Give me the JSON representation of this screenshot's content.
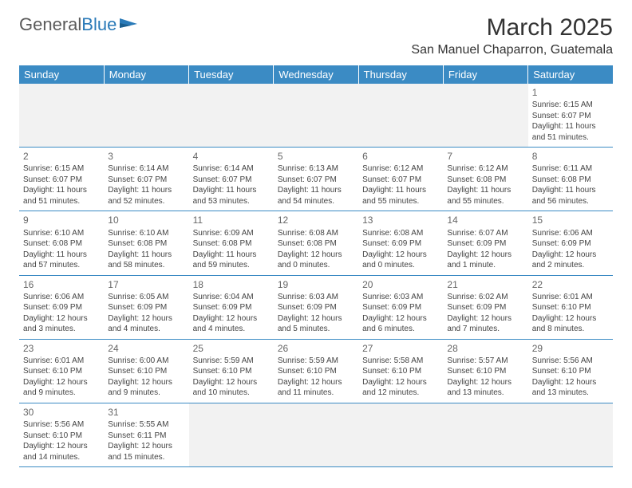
{
  "logo": {
    "word1": "General",
    "word2": "Blue"
  },
  "title": "March 2025",
  "location": "San Manuel Chaparron, Guatemala",
  "colors": {
    "header_bg": "#3b8bc4",
    "header_text": "#ffffff",
    "rule": "#3b8bc4",
    "empty_bg": "#f2f2f2",
    "logo_gray": "#5a5a5a",
    "logo_blue": "#2a7ab8"
  },
  "weekdays": [
    "Sunday",
    "Monday",
    "Tuesday",
    "Wednesday",
    "Thursday",
    "Friday",
    "Saturday"
  ],
  "weeks": [
    [
      null,
      null,
      null,
      null,
      null,
      null,
      {
        "n": "1",
        "sr": "Sunrise: 6:15 AM",
        "ss": "Sunset: 6:07 PM",
        "dl": "Daylight: 11 hours and 51 minutes."
      }
    ],
    [
      {
        "n": "2",
        "sr": "Sunrise: 6:15 AM",
        "ss": "Sunset: 6:07 PM",
        "dl": "Daylight: 11 hours and 51 minutes."
      },
      {
        "n": "3",
        "sr": "Sunrise: 6:14 AM",
        "ss": "Sunset: 6:07 PM",
        "dl": "Daylight: 11 hours and 52 minutes."
      },
      {
        "n": "4",
        "sr": "Sunrise: 6:14 AM",
        "ss": "Sunset: 6:07 PM",
        "dl": "Daylight: 11 hours and 53 minutes."
      },
      {
        "n": "5",
        "sr": "Sunrise: 6:13 AM",
        "ss": "Sunset: 6:07 PM",
        "dl": "Daylight: 11 hours and 54 minutes."
      },
      {
        "n": "6",
        "sr": "Sunrise: 6:12 AM",
        "ss": "Sunset: 6:07 PM",
        "dl": "Daylight: 11 hours and 55 minutes."
      },
      {
        "n": "7",
        "sr": "Sunrise: 6:12 AM",
        "ss": "Sunset: 6:08 PM",
        "dl": "Daylight: 11 hours and 55 minutes."
      },
      {
        "n": "8",
        "sr": "Sunrise: 6:11 AM",
        "ss": "Sunset: 6:08 PM",
        "dl": "Daylight: 11 hours and 56 minutes."
      }
    ],
    [
      {
        "n": "9",
        "sr": "Sunrise: 6:10 AM",
        "ss": "Sunset: 6:08 PM",
        "dl": "Daylight: 11 hours and 57 minutes."
      },
      {
        "n": "10",
        "sr": "Sunrise: 6:10 AM",
        "ss": "Sunset: 6:08 PM",
        "dl": "Daylight: 11 hours and 58 minutes."
      },
      {
        "n": "11",
        "sr": "Sunrise: 6:09 AM",
        "ss": "Sunset: 6:08 PM",
        "dl": "Daylight: 11 hours and 59 minutes."
      },
      {
        "n": "12",
        "sr": "Sunrise: 6:08 AM",
        "ss": "Sunset: 6:08 PM",
        "dl": "Daylight: 12 hours and 0 minutes."
      },
      {
        "n": "13",
        "sr": "Sunrise: 6:08 AM",
        "ss": "Sunset: 6:09 PM",
        "dl": "Daylight: 12 hours and 0 minutes."
      },
      {
        "n": "14",
        "sr": "Sunrise: 6:07 AM",
        "ss": "Sunset: 6:09 PM",
        "dl": "Daylight: 12 hours and 1 minute."
      },
      {
        "n": "15",
        "sr": "Sunrise: 6:06 AM",
        "ss": "Sunset: 6:09 PM",
        "dl": "Daylight: 12 hours and 2 minutes."
      }
    ],
    [
      {
        "n": "16",
        "sr": "Sunrise: 6:06 AM",
        "ss": "Sunset: 6:09 PM",
        "dl": "Daylight: 12 hours and 3 minutes."
      },
      {
        "n": "17",
        "sr": "Sunrise: 6:05 AM",
        "ss": "Sunset: 6:09 PM",
        "dl": "Daylight: 12 hours and 4 minutes."
      },
      {
        "n": "18",
        "sr": "Sunrise: 6:04 AM",
        "ss": "Sunset: 6:09 PM",
        "dl": "Daylight: 12 hours and 4 minutes."
      },
      {
        "n": "19",
        "sr": "Sunrise: 6:03 AM",
        "ss": "Sunset: 6:09 PM",
        "dl": "Daylight: 12 hours and 5 minutes."
      },
      {
        "n": "20",
        "sr": "Sunrise: 6:03 AM",
        "ss": "Sunset: 6:09 PM",
        "dl": "Daylight: 12 hours and 6 minutes."
      },
      {
        "n": "21",
        "sr": "Sunrise: 6:02 AM",
        "ss": "Sunset: 6:09 PM",
        "dl": "Daylight: 12 hours and 7 minutes."
      },
      {
        "n": "22",
        "sr": "Sunrise: 6:01 AM",
        "ss": "Sunset: 6:10 PM",
        "dl": "Daylight: 12 hours and 8 minutes."
      }
    ],
    [
      {
        "n": "23",
        "sr": "Sunrise: 6:01 AM",
        "ss": "Sunset: 6:10 PM",
        "dl": "Daylight: 12 hours and 9 minutes."
      },
      {
        "n": "24",
        "sr": "Sunrise: 6:00 AM",
        "ss": "Sunset: 6:10 PM",
        "dl": "Daylight: 12 hours and 9 minutes."
      },
      {
        "n": "25",
        "sr": "Sunrise: 5:59 AM",
        "ss": "Sunset: 6:10 PM",
        "dl": "Daylight: 12 hours and 10 minutes."
      },
      {
        "n": "26",
        "sr": "Sunrise: 5:59 AM",
        "ss": "Sunset: 6:10 PM",
        "dl": "Daylight: 12 hours and 11 minutes."
      },
      {
        "n": "27",
        "sr": "Sunrise: 5:58 AM",
        "ss": "Sunset: 6:10 PM",
        "dl": "Daylight: 12 hours and 12 minutes."
      },
      {
        "n": "28",
        "sr": "Sunrise: 5:57 AM",
        "ss": "Sunset: 6:10 PM",
        "dl": "Daylight: 12 hours and 13 minutes."
      },
      {
        "n": "29",
        "sr": "Sunrise: 5:56 AM",
        "ss": "Sunset: 6:10 PM",
        "dl": "Daylight: 12 hours and 13 minutes."
      }
    ],
    [
      {
        "n": "30",
        "sr": "Sunrise: 5:56 AM",
        "ss": "Sunset: 6:10 PM",
        "dl": "Daylight: 12 hours and 14 minutes."
      },
      {
        "n": "31",
        "sr": "Sunrise: 5:55 AM",
        "ss": "Sunset: 6:11 PM",
        "dl": "Daylight: 12 hours and 15 minutes."
      },
      null,
      null,
      null,
      null,
      null
    ]
  ]
}
